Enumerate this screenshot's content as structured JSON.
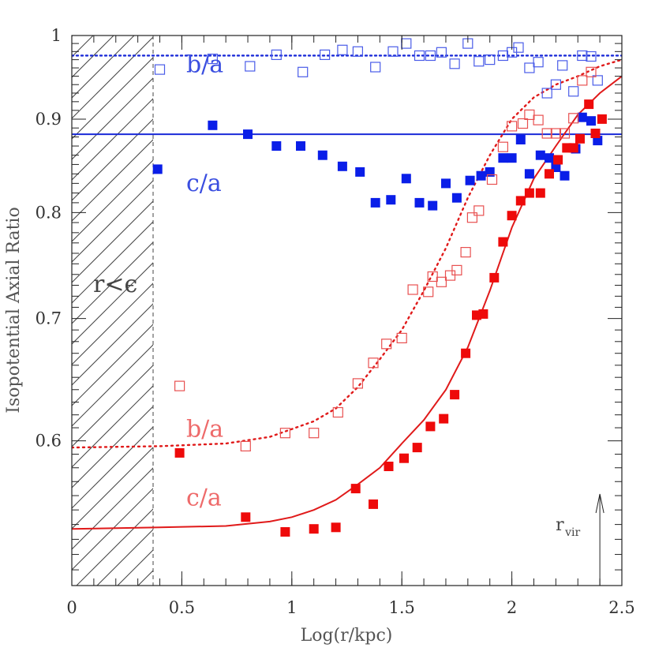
{
  "chart_data": {
    "type": "scatter",
    "xlabel": "Log(r/kpc)",
    "ylabel": "Isopotential Axial Ratio",
    "xlim": [
      0,
      2.5
    ],
    "ylim": [
      0.5,
      1.0
    ],
    "y_scale": "log",
    "xticks": [
      "0",
      "0.5",
      "1",
      "1.5",
      "2",
      "2.5"
    ],
    "yticks": [
      {
        "value": 0.6,
        "label": "0.6"
      },
      {
        "value": 0.7,
        "label": "0.7"
      },
      {
        "value": 0.8,
        "label": "0.8"
      },
      {
        "value": 0.9,
        "label": "0.9"
      },
      {
        "value": 1.0,
        "label": "1"
      }
    ],
    "hatched_region": {
      "x_max": 0.37,
      "label": "r<ϵ"
    },
    "annotations": [
      {
        "name": "blue-b-over-a",
        "text": "b/a",
        "color": "#3a4ee0",
        "x": 0.52,
        "y": 0.955
      },
      {
        "name": "blue-c-over-a",
        "text": "c/a",
        "color": "#3a4ee0",
        "x": 0.52,
        "y": 0.822
      },
      {
        "name": "red-b-over-a",
        "text": "b/a",
        "color": "#ee6a6a",
        "x": 0.52,
        "y": 0.603
      },
      {
        "name": "red-c-over-a",
        "text": "c/a",
        "color": "#ee6a6a",
        "x": 0.52,
        "y": 0.553
      }
    ],
    "rvir": {
      "label": "r",
      "subscript": "vir",
      "x": 2.4
    },
    "reference_lines": [
      {
        "name": "blue-b-over-a-line",
        "y": 0.975,
        "style": "dotted",
        "color": "#1a2ad8"
      },
      {
        "name": "blue-c-over-a-line",
        "y": 0.883,
        "style": "solid",
        "color": "#1a2ad8"
      }
    ],
    "series": [
      {
        "name": "blue b/a (open)",
        "marker": "open-square",
        "color": "#4a5ce8",
        "x": [
          0.4,
          0.64,
          0.81,
          0.93,
          1.05,
          1.15,
          1.23,
          1.3,
          1.38,
          1.46,
          1.52,
          1.58,
          1.63,
          1.68,
          1.74,
          1.8,
          1.85,
          1.9,
          1.96,
          2.0,
          2.03,
          2.08,
          2.12,
          2.16,
          2.2,
          2.23,
          2.28,
          2.32,
          2.36,
          2.39
        ],
        "y": [
          0.958,
          0.971,
          0.962,
          0.976,
          0.955,
          0.976,
          0.982,
          0.98,
          0.961,
          0.98,
          0.99,
          0.975,
          0.975,
          0.979,
          0.965,
          0.99,
          0.968,
          0.97,
          0.975,
          0.979,
          0.985,
          0.96,
          0.967,
          0.93,
          0.94,
          0.963,
          0.932,
          0.975,
          0.974,
          0.945
        ]
      },
      {
        "name": "blue c/a (filled)",
        "marker": "filled-square",
        "color": "#0a1ee8",
        "x": [
          0.39,
          0.64,
          0.8,
          0.93,
          1.04,
          1.14,
          1.23,
          1.31,
          1.38,
          1.45,
          1.52,
          1.58,
          1.64,
          1.7,
          1.75,
          1.81,
          1.86,
          1.9,
          1.96,
          2.0,
          2.04,
          2.08,
          2.13,
          2.17,
          2.2,
          2.24,
          2.29,
          2.32,
          2.36,
          2.39
        ],
        "y": [
          0.845,
          0.893,
          0.883,
          0.87,
          0.87,
          0.86,
          0.848,
          0.842,
          0.81,
          0.813,
          0.835,
          0.81,
          0.807,
          0.83,
          0.815,
          0.833,
          0.838,
          0.842,
          0.857,
          0.857,
          0.877,
          0.84,
          0.86,
          0.857,
          0.847,
          0.838,
          0.867,
          0.902,
          0.898,
          0.876
        ]
      },
      {
        "name": "red b/a (open)",
        "marker": "open-square",
        "color": "#e85050",
        "x": [
          0.49,
          0.79,
          0.97,
          1.1,
          1.21,
          1.3,
          1.37,
          1.43,
          1.5,
          1.55,
          1.62,
          1.64,
          1.68,
          1.72,
          1.75,
          1.79,
          1.82,
          1.85,
          1.91,
          1.96,
          2.0,
          2.05,
          2.08,
          2.12,
          2.16,
          2.2,
          2.24,
          2.28,
          2.32,
          2.36
        ],
        "y": [
          0.643,
          0.596,
          0.606,
          0.606,
          0.622,
          0.645,
          0.662,
          0.678,
          0.683,
          0.726,
          0.724,
          0.738,
          0.733,
          0.739,
          0.744,
          0.761,
          0.795,
          0.802,
          0.834,
          0.869,
          0.892,
          0.895,
          0.905,
          0.899,
          0.884,
          0.884,
          0.884,
          0.901,
          0.945,
          0.955
        ]
      },
      {
        "name": "red c/a (filled)",
        "marker": "filled-square",
        "color": "#ee0a0a",
        "x": [
          0.49,
          0.79,
          0.97,
          1.1,
          1.2,
          1.29,
          1.37,
          1.44,
          1.51,
          1.57,
          1.63,
          1.69,
          1.74,
          1.79,
          1.84,
          1.87,
          1.92,
          1.96,
          2.0,
          2.04,
          2.08,
          2.13,
          2.17,
          2.21,
          2.25,
          2.28,
          2.31,
          2.35,
          2.38,
          2.41
        ],
        "y": [
          0.591,
          0.545,
          0.535,
          0.537,
          0.538,
          0.565,
          0.554,
          0.581,
          0.587,
          0.595,
          0.611,
          0.617,
          0.636,
          0.67,
          0.703,
          0.704,
          0.737,
          0.771,
          0.797,
          0.812,
          0.82,
          0.82,
          0.84,
          0.855,
          0.868,
          0.868,
          0.878,
          0.917,
          0.884,
          0.9
        ]
      }
    ],
    "fit_curves": [
      {
        "name": "red-b-over-a-fit",
        "style": "dotted",
        "color": "#e01a1a",
        "points": [
          [
            0.0,
            0.595
          ],
          [
            0.4,
            0.596
          ],
          [
            0.7,
            0.598
          ],
          [
            0.9,
            0.603
          ],
          [
            1.1,
            0.615
          ],
          [
            1.2,
            0.625
          ],
          [
            1.3,
            0.642
          ],
          [
            1.4,
            0.665
          ],
          [
            1.5,
            0.69
          ],
          [
            1.6,
            0.725
          ],
          [
            1.7,
            0.765
          ],
          [
            1.8,
            0.815
          ],
          [
            1.9,
            0.86
          ],
          [
            2.0,
            0.9
          ],
          [
            2.1,
            0.925
          ],
          [
            2.2,
            0.94
          ],
          [
            2.3,
            0.95
          ],
          [
            2.4,
            0.962
          ],
          [
            2.5,
            0.97
          ]
        ]
      },
      {
        "name": "red-c-over-a-fit",
        "style": "solid",
        "color": "#e01a1a",
        "points": [
          [
            0.0,
            0.537
          ],
          [
            0.4,
            0.538
          ],
          [
            0.7,
            0.539
          ],
          [
            0.9,
            0.542
          ],
          [
            1.0,
            0.545
          ],
          [
            1.1,
            0.55
          ],
          [
            1.2,
            0.557
          ],
          [
            1.3,
            0.568
          ],
          [
            1.4,
            0.58
          ],
          [
            1.5,
            0.598
          ],
          [
            1.6,
            0.616
          ],
          [
            1.7,
            0.64
          ],
          [
            1.8,
            0.675
          ],
          [
            1.9,
            0.725
          ],
          [
            2.0,
            0.785
          ],
          [
            2.1,
            0.835
          ],
          [
            2.2,
            0.87
          ],
          [
            2.3,
            0.905
          ],
          [
            2.4,
            0.93
          ],
          [
            2.5,
            0.95
          ]
        ]
      }
    ]
  }
}
